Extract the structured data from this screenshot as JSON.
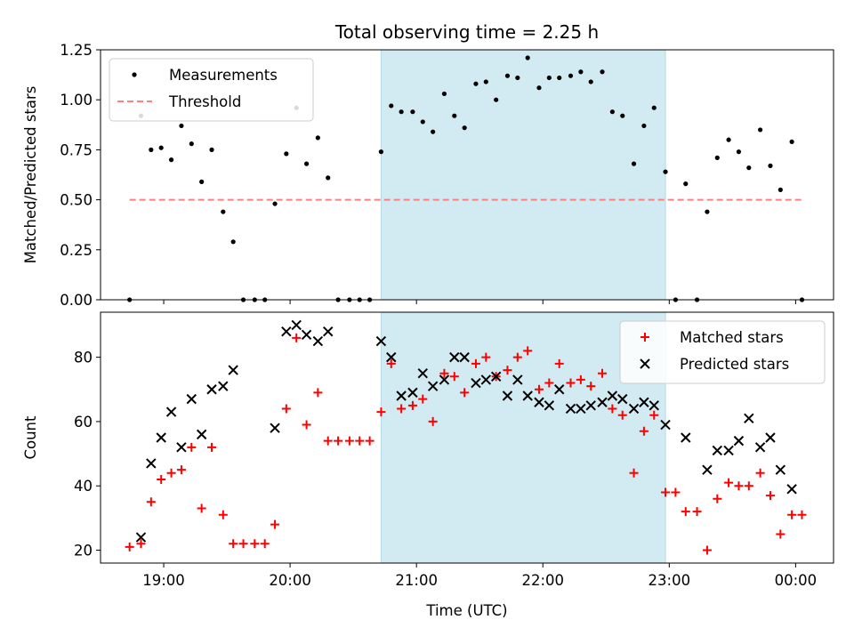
{
  "chart_data": [
    {
      "type": "scatter",
      "title": "Total observing time = 2.25 h",
      "xlabel": "",
      "ylabel": "Matched/Predicted stars",
      "x_unit": "hours (UTC)",
      "xlim": [
        18.5,
        24.3
      ],
      "ylim": [
        0,
        1.25
      ],
      "yticks": [
        0,
        0.25,
        0.5,
        0.75,
        1.0,
        1.25
      ],
      "ytick_labels": [
        "0.00",
        "0.25",
        "0.50",
        "0.75",
        "1.00",
        "1.25"
      ],
      "shaded_span": [
        20.72,
        22.97
      ],
      "shaded_color": "#add8e6",
      "legend_position": "upper left",
      "series": [
        {
          "name": "Measurements",
          "marker": "dot",
          "color": "#000000",
          "x": [
            18.73,
            18.82,
            18.9,
            18.98,
            19.06,
            19.14,
            19.22,
            19.3,
            19.38,
            19.47,
            19.55,
            19.63,
            19.72,
            19.8,
            19.88,
            19.97,
            20.05,
            20.13,
            20.22,
            20.3,
            20.38,
            20.47,
            20.55,
            20.63,
            20.72,
            20.8,
            20.88,
            20.97,
            21.05,
            21.13,
            21.22,
            21.3,
            21.38,
            21.47,
            21.55,
            21.63,
            21.72,
            21.8,
            21.88,
            21.97,
            22.05,
            22.13,
            22.22,
            22.3,
            22.38,
            22.47,
            22.55,
            22.63,
            22.72,
            22.8,
            22.88,
            22.97,
            23.05,
            23.13,
            23.22,
            23.3,
            23.38,
            23.47,
            23.55,
            23.63,
            23.72,
            23.8,
            23.88,
            23.97,
            24.05
          ],
          "values": [
            0.0,
            0.92,
            0.75,
            0.76,
            0.7,
            0.87,
            0.78,
            0.59,
            0.75,
            0.44,
            0.29,
            0.0,
            0.0,
            0.0,
            0.48,
            0.73,
            0.96,
            0.68,
            0.81,
            0.61,
            0.0,
            0.0,
            0.0,
            0.0,
            0.74,
            0.97,
            0.94,
            0.94,
            0.89,
            0.84,
            1.03,
            0.92,
            0.86,
            1.08,
            1.09,
            1.0,
            1.12,
            1.11,
            1.21,
            1.06,
            1.11,
            1.11,
            1.12,
            1.14,
            1.09,
            1.14,
            0.94,
            0.92,
            0.68,
            0.87,
            0.96,
            0.64,
            0.0,
            0.58,
            0.0,
            0.44,
            0.71,
            0.8,
            0.74,
            0.66,
            0.85,
            0.67,
            0.55,
            0.79,
            0.0
          ]
        },
        {
          "name": "Threshold",
          "marker": "dashed-line",
          "color": "#ff8080",
          "x": [
            18.73,
            24.05
          ],
          "values": [
            0.5,
            0.5
          ]
        }
      ]
    },
    {
      "type": "scatter",
      "title": "",
      "xlabel": "Time (UTC)",
      "ylabel": "Count",
      "x_unit": "hours (UTC)",
      "xlim": [
        18.5,
        24.3
      ],
      "ylim": [
        16,
        94
      ],
      "yticks": [
        20,
        40,
        60,
        80
      ],
      "ytick_labels": [
        "20",
        "40",
        "60",
        "80"
      ],
      "xticks": [
        19,
        20,
        21,
        22,
        23,
        24
      ],
      "xtick_labels": [
        "19:00",
        "20:00",
        "21:00",
        "22:00",
        "23:00",
        "00:00"
      ],
      "shaded_span": [
        20.72,
        22.97
      ],
      "shaded_color": "#add8e6",
      "legend_position": "upper right",
      "series": [
        {
          "name": "Matched stars",
          "marker": "plus",
          "color": "#ff0000",
          "x": [
            18.73,
            18.82,
            18.9,
            18.98,
            19.06,
            19.14,
            19.22,
            19.3,
            19.38,
            19.47,
            19.55,
            19.63,
            19.72,
            19.8,
            19.88,
            19.97,
            20.05,
            20.13,
            20.22,
            20.3,
            20.38,
            20.47,
            20.55,
            20.63,
            20.72,
            20.8,
            20.88,
            20.97,
            21.05,
            21.13,
            21.22,
            21.3,
            21.38,
            21.47,
            21.55,
            21.63,
            21.72,
            21.8,
            21.88,
            21.97,
            22.05,
            22.13,
            22.22,
            22.3,
            22.38,
            22.47,
            22.55,
            22.63,
            22.72,
            22.8,
            22.88,
            22.97,
            23.05,
            23.13,
            23.22,
            23.3,
            23.38,
            23.47,
            23.55,
            23.63,
            23.72,
            23.8,
            23.88,
            23.97,
            24.05
          ],
          "values": [
            21,
            22,
            35,
            42,
            44,
            45,
            52,
            33,
            52,
            31,
            22,
            22,
            22,
            22,
            28,
            64,
            86,
            59,
            69,
            54,
            54,
            54,
            54,
            54,
            63,
            78,
            64,
            65,
            67,
            60,
            75,
            74,
            69,
            78,
            80,
            74,
            76,
            80,
            82,
            70,
            72,
            78,
            72,
            73,
            71,
            75,
            64,
            62,
            44,
            57,
            62,
            38,
            38,
            32,
            32,
            20,
            36,
            41,
            40,
            40,
            44,
            37,
            25,
            31,
            31
          ]
        },
        {
          "name": "Predicted stars",
          "marker": "x",
          "color": "#000000",
          "x": [
            18.82,
            18.9,
            18.98,
            19.06,
            19.14,
            19.22,
            19.3,
            19.38,
            19.47,
            19.55,
            19.88,
            19.97,
            20.05,
            20.13,
            20.22,
            20.3,
            20.72,
            20.8,
            20.88,
            20.97,
            21.05,
            21.13,
            21.22,
            21.3,
            21.38,
            21.47,
            21.55,
            21.63,
            21.72,
            21.8,
            21.88,
            21.97,
            22.05,
            22.13,
            22.22,
            22.3,
            22.38,
            22.47,
            22.55,
            22.63,
            22.72,
            22.8,
            22.88,
            22.97,
            23.13,
            23.3,
            23.38,
            23.47,
            23.55,
            23.63,
            23.72,
            23.8,
            23.88,
            23.97
          ],
          "values": [
            24,
            47,
            55,
            63,
            52,
            67,
            56,
            70,
            71,
            76,
            58,
            88,
            90,
            87,
            85,
            88,
            85,
            80,
            68,
            69,
            75,
            71,
            73,
            80,
            80,
            72,
            73,
            74,
            68,
            73,
            68,
            66,
            65,
            70,
            64,
            64,
            65,
            66,
            68,
            67,
            64,
            66,
            65,
            59,
            55,
            45,
            51,
            51,
            54,
            61,
            52,
            55,
            45,
            39
          ]
        }
      ]
    }
  ]
}
